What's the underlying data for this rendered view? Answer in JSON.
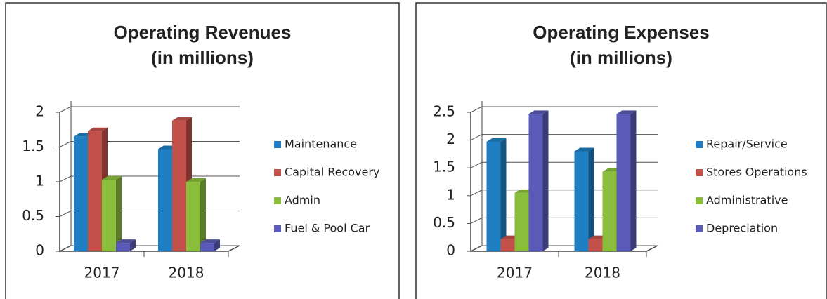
{
  "chart_data": [
    {
      "type": "bar",
      "title": "Operating Revenues",
      "subtitle": "(in millions)",
      "categories": [
        "2017",
        "2018"
      ],
      "series": [
        {
          "name": "Maintenance",
          "color": "#1f7fc2",
          "values": [
            1.65,
            1.47
          ]
        },
        {
          "name": "Capital Recovery",
          "color": "#c4504a",
          "values": [
            1.73,
            1.88
          ]
        },
        {
          "name": "Admin",
          "color": "#8bbd3c",
          "values": [
            1.03,
            1.0
          ]
        },
        {
          "name": "Fuel & Pool Car",
          "color": "#5a5ab8",
          "values": [
            0.12,
            0.12
          ]
        }
      ],
      "ylim": [
        0,
        2
      ],
      "yticks": [
        0,
        0.5,
        1,
        1.5,
        2
      ],
      "grid": true,
      "legend": "right"
    },
    {
      "type": "bar",
      "title": "Operating Expenses",
      "subtitle": "(in millions)",
      "categories": [
        "2017",
        "2018"
      ],
      "series": [
        {
          "name": "Repair/Service",
          "color": "#1f7fc2",
          "values": [
            1.97,
            1.8
          ]
        },
        {
          "name": "Stores Operations",
          "color": "#c4504a",
          "values": [
            0.22,
            0.22
          ]
        },
        {
          "name": "Administrative",
          "color": "#8bbd3c",
          "values": [
            1.05,
            1.43
          ]
        },
        {
          "name": "Depreciation",
          "color": "#5a5ab8",
          "values": [
            2.47,
            2.47
          ]
        }
      ],
      "ylim": [
        0,
        2.5
      ],
      "yticks": [
        0,
        0.5,
        1,
        1.5,
        2,
        2.5
      ],
      "grid": true,
      "legend": "right"
    }
  ]
}
